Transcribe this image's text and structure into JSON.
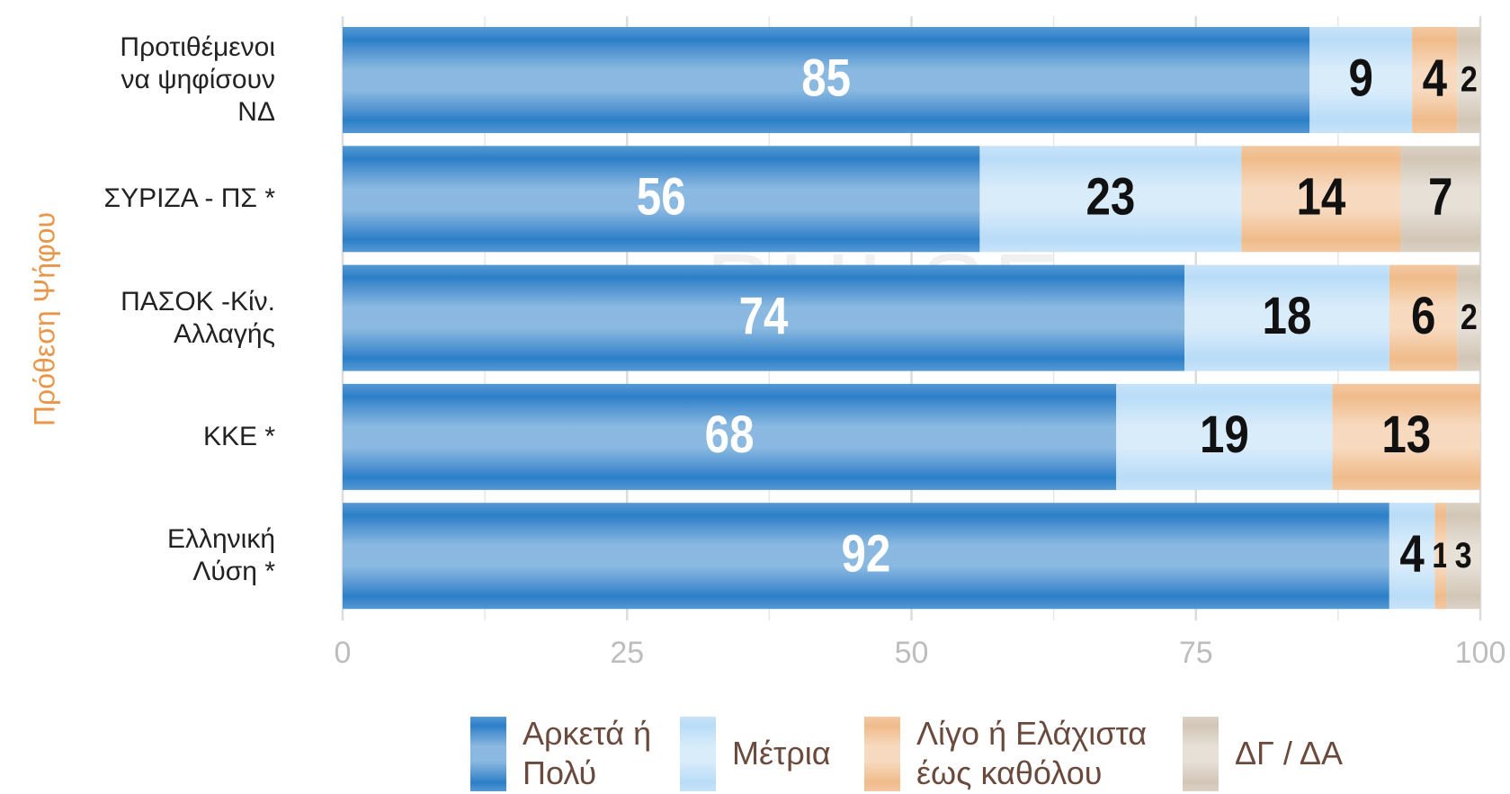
{
  "chart_data": {
    "type": "stacked-bar-horizontal",
    "y_axis_label": "Πρόθεση Ψήφου",
    "watermark": "PULSE",
    "categories": [
      "Προτιθέμενοι\nνα ψηφίσουν\nΝΔ",
      "ΣΥΡΙΖΑ - ΠΣ *",
      "ΠΑΣΟΚ -Κίν.\nΑλλαγής",
      "ΚΚΕ *",
      "Ελληνική\nΛύση *"
    ],
    "series": [
      {
        "name": "Αρκετά ή\nΠολύ",
        "color": "#2a7fc8",
        "label_color": "#ffffff",
        "values": [
          85,
          56,
          74,
          68,
          92
        ]
      },
      {
        "name": "Μέτρια",
        "color": "#b9dcf7",
        "label_color": "#111111",
        "values": [
          9,
          23,
          18,
          19,
          4
        ]
      },
      {
        "name": "Λίγο ή Ελάχιστα\nέως καθόλου",
        "color": "#f0bb8a",
        "label_color": "#111111",
        "values": [
          4,
          14,
          6,
          13,
          1
        ]
      },
      {
        "name": "ΔΓ / ΔΑ",
        "color": "#d2c6b6",
        "label_color": "#111111",
        "values": [
          2,
          7,
          2,
          0,
          3
        ]
      }
    ],
    "xlim": [
      0,
      100
    ],
    "xticks": [
      0,
      25,
      50,
      75,
      100
    ],
    "minor_xticks": [
      12.5,
      37.5,
      62.5,
      87.5
    ],
    "grid": true
  }
}
